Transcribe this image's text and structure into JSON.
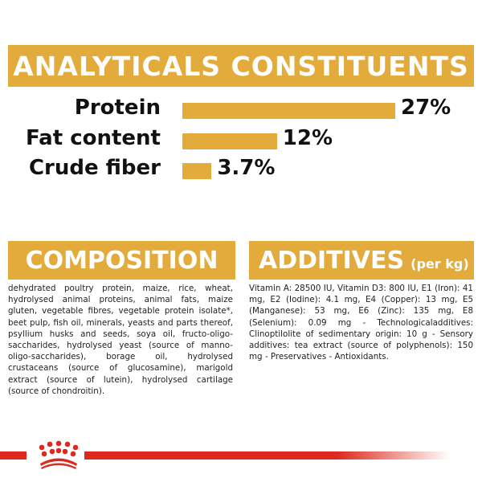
{
  "title": "ANALYTICALS CONSTITUENTS",
  "chart_data": {
    "type": "bar",
    "categories": [
      "Protein",
      "Fat content",
      "Crude fiber"
    ],
    "values": [
      27,
      12,
      3.7
    ],
    "labels": [
      "27%",
      "12%",
      "3.7%"
    ],
    "color": "#e3ab3b"
  },
  "composition": {
    "heading": "COMPOSITION",
    "text": "dehydrated poultry protein, maize, rice, wheat, hydrolysed animal proteins, animal fats, maize gluten, vegetable fibres, vegetable protein isolate*, beet pulp, fish oil, minerals, yeasts and parts thereof, psyllium husks and seeds, soya oil, fructo-oligo-saccharides, hydrolysed yeast (source of manno-oligo-saccharides), borage oil, hydrolysed crustaceans (source of glucosamine), marigold extract (source of lutein), hydrolysed cartilage (source of chondroitin)."
  },
  "additives": {
    "heading": "ADDITIVES",
    "unit": "(per kg)",
    "text": "Vitamin A: 28500 IU, Vitamin D3: 800 IU, E1 (Iron): 41 mg, E2 (Iodine): 4.1 mg, E4 (Copper): 13 mg, E5 (Manganese): 53 mg, E6 (Zinc): 135 mg, E8 (Selenium): 0.09 mg - Technologicaladditives: Clinoptilolite of sedimentary origin: 10 g - Sensory additives: tea extract (source of polyphenols): 150 mg - Preservatives - Antioxidants."
  },
  "brand_color": "#dd2a1f",
  "logo": "royal-canin-crown"
}
